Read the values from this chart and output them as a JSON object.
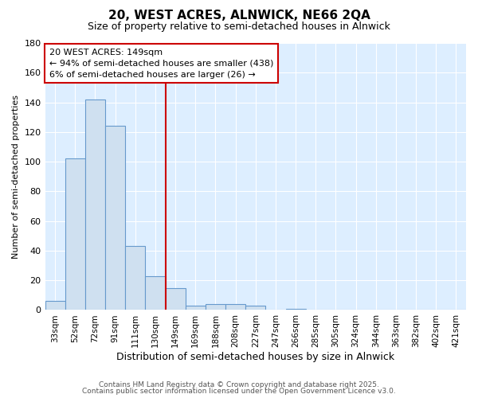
{
  "title": "20, WEST ACRES, ALNWICK, NE66 2QA",
  "subtitle": "Size of property relative to semi-detached houses in Alnwick",
  "xlabel": "Distribution of semi-detached houses by size in Alnwick",
  "ylabel": "Number of semi-detached properties",
  "categories": [
    "33sqm",
    "52sqm",
    "72sqm",
    "91sqm",
    "111sqm",
    "130sqm",
    "149sqm",
    "169sqm",
    "188sqm",
    "208sqm",
    "227sqm",
    "247sqm",
    "266sqm",
    "285sqm",
    "305sqm",
    "324sqm",
    "344sqm",
    "363sqm",
    "382sqm",
    "402sqm",
    "421sqm"
  ],
  "values": [
    6,
    102,
    142,
    124,
    43,
    23,
    15,
    3,
    4,
    4,
    3,
    0,
    1,
    0,
    0,
    0,
    0,
    0,
    0,
    0,
    0
  ],
  "bar_color": "#cfe0f0",
  "bar_edge_color": "#6699cc",
  "marker_index": 6,
  "marker_color": "#cc0000",
  "ylim": [
    0,
    180
  ],
  "yticks": [
    0,
    20,
    40,
    60,
    80,
    100,
    120,
    140,
    160,
    180
  ],
  "annotation_title": "20 WEST ACRES: 149sqm",
  "annotation_line1": "← 94% of semi-detached houses are smaller (438)",
  "annotation_line2": "6% of semi-detached houses are larger (26) →",
  "footer1": "Contains HM Land Registry data © Crown copyright and database right 2025.",
  "footer2": "Contains public sector information licensed under the Open Government Licence v3.0.",
  "bg_color": "#ffffff",
  "plot_bg_color": "#ddeeff",
  "grid_color": "#ffffff"
}
